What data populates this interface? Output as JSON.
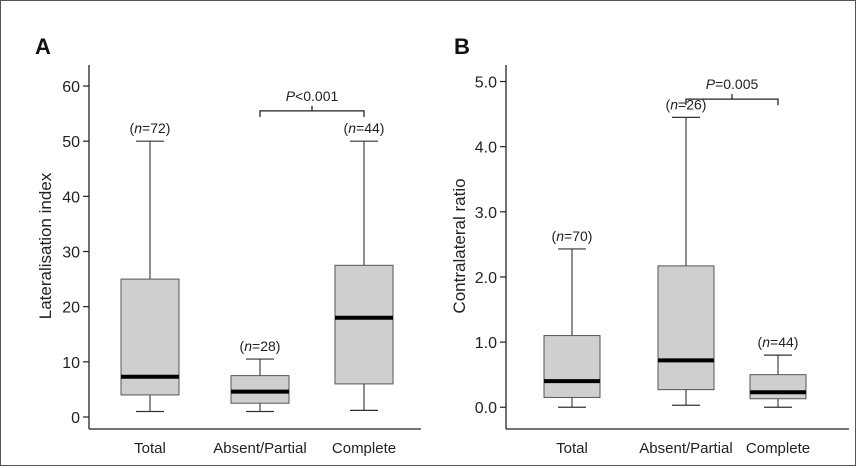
{
  "chart_data": [
    {
      "type": "box",
      "panel_label": "A",
      "ylabel": "Lateralisation index",
      "ylim": [
        0,
        62
      ],
      "yticks": [
        0,
        10,
        20,
        30,
        40,
        50,
        60
      ],
      "ytick_labels": [
        "0",
        "10",
        "20",
        "30",
        "40",
        "50",
        "60"
      ],
      "categories": [
        "Total",
        "Absent/Partial",
        "Complete"
      ],
      "n_labels": [
        "(n=72)",
        "(n=28)",
        "(n=44)"
      ],
      "boxes": [
        {
          "min": 1.0,
          "q1": 4.0,
          "median": 7.3,
          "q3": 25.0,
          "max": 50.0
        },
        {
          "min": 1.0,
          "q1": 2.5,
          "median": 4.6,
          "q3": 7.5,
          "max": 10.5
        },
        {
          "min": 1.2,
          "q1": 6.0,
          "median": 18.0,
          "q3": 27.5,
          "max": 50.0
        }
      ],
      "comparison": {
        "from": 1,
        "to": 2,
        "label": "P<0.001",
        "y": 55.5
      }
    },
    {
      "type": "box",
      "panel_label": "B",
      "ylabel": "Contralateral ratio",
      "ylim": [
        -0.15,
        5.1
      ],
      "yticks": [
        0,
        1,
        2,
        3,
        4,
        5
      ],
      "ytick_labels": [
        "0.0",
        "1.0",
        "2.0",
        "3.0",
        "4.0",
        "5.0"
      ],
      "categories": [
        "Total",
        "Absent/Partial",
        "Complete"
      ],
      "n_labels": [
        "(n=70)",
        "(n=26)",
        "(n=44)"
      ],
      "boxes": [
        {
          "min": 0.0,
          "q1": 0.15,
          "median": 0.4,
          "q3": 1.1,
          "max": 2.43
        },
        {
          "min": 0.03,
          "q1": 0.27,
          "median": 0.72,
          "q3": 2.17,
          "max": 4.45
        },
        {
          "min": 0.0,
          "q1": 0.13,
          "median": 0.23,
          "q3": 0.5,
          "max": 0.8
        }
      ],
      "comparison": {
        "from": 1,
        "to": 2,
        "label": "P=0.005",
        "y": 4.73
      }
    }
  ]
}
